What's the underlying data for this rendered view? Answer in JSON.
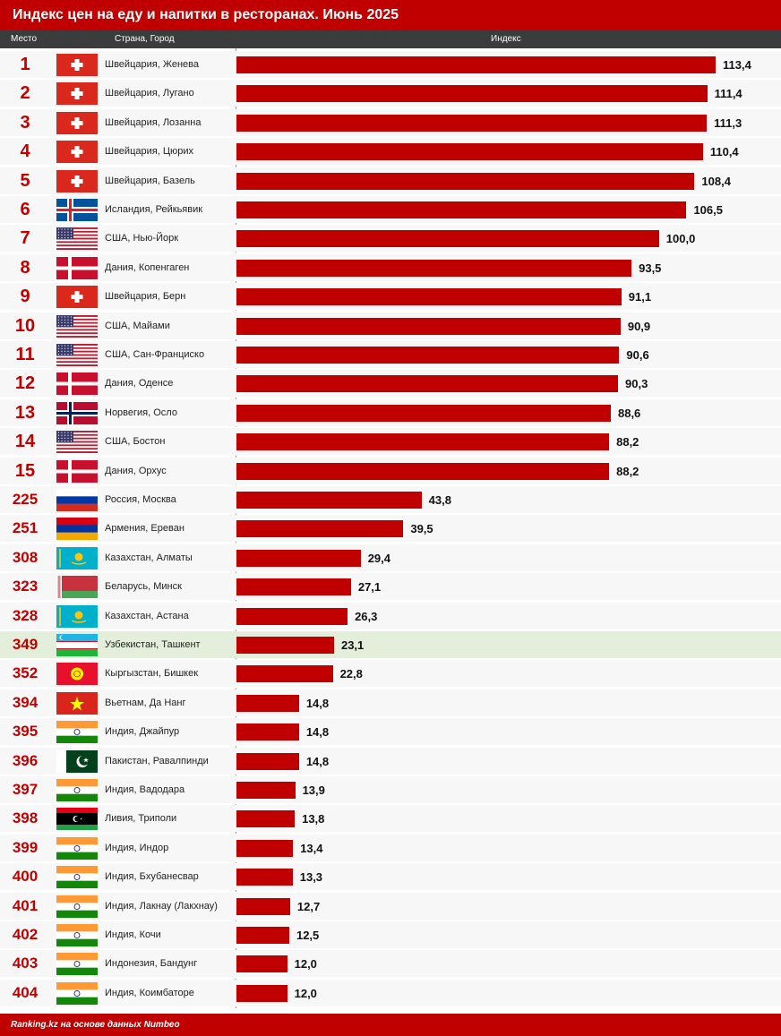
{
  "title": "Индекс цен на еду и напитки в ресторанах. Июнь 2025",
  "columns": {
    "rank": "Место",
    "city": "Страна, Город",
    "index": "Индекс"
  },
  "footer": "Ranking.kz на основе данных Numbeo",
  "colors": {
    "accent": "#c00000",
    "highlight_row": "#e3efdb",
    "header": "#3c3c3c"
  },
  "chart_data": {
    "type": "bar",
    "orientation": "horizontal",
    "title": "Индекс цен на еду и напитки в ресторанах. Июнь 2025",
    "xlim": [
      0,
      120
    ],
    "highlight": "Узбекистан, Ташкент",
    "rows": [
      {
        "rank": "1",
        "city": "Швейцария, Женева",
        "flag": "switzerland-flag",
        "value": 113.4,
        "label": "113,4"
      },
      {
        "rank": "2",
        "city": "Швейцария, Лугано",
        "flag": "switzerland-flag",
        "value": 111.4,
        "label": "111,4"
      },
      {
        "rank": "3",
        "city": "Швейцария, Лозанна",
        "flag": "switzerland-flag",
        "value": 111.3,
        "label": "111,3"
      },
      {
        "rank": "4",
        "city": "Швейцария, Цюрих",
        "flag": "switzerland-flag",
        "value": 110.4,
        "label": "110,4"
      },
      {
        "rank": "5",
        "city": "Швейцария, Базель",
        "flag": "switzerland-flag",
        "value": 108.4,
        "label": "108,4"
      },
      {
        "rank": "6",
        "city": "Исландия, Рейкьявик",
        "flag": "iceland-flag",
        "value": 106.5,
        "label": "106,5"
      },
      {
        "rank": "7",
        "city": "США, Нью-Йорк",
        "flag": "usa-flag",
        "value": 100.0,
        "label": "100,0"
      },
      {
        "rank": "8",
        "city": "Дания, Копенгаген",
        "flag": "denmark-flag",
        "value": 93.5,
        "label": "93,5"
      },
      {
        "rank": "9",
        "city": "Швейцария, Берн",
        "flag": "switzerland-flag",
        "value": 91.1,
        "label": "91,1"
      },
      {
        "rank": "10",
        "city": "США, Майами",
        "flag": "usa-flag",
        "value": 90.9,
        "label": "90,9"
      },
      {
        "rank": "11",
        "city": "США, Сан-Франциско",
        "flag": "usa-flag",
        "value": 90.6,
        "label": "90,6"
      },
      {
        "rank": "12",
        "city": "Дания, Оденсе",
        "flag": "denmark-flag",
        "value": 90.3,
        "label": "90,3"
      },
      {
        "rank": "13",
        "city": "Норвегия, Осло",
        "flag": "norway-flag",
        "value": 88.6,
        "label": "88,6"
      },
      {
        "rank": "14",
        "city": "США, Бостон",
        "flag": "usa-flag",
        "value": 88.2,
        "label": "88,2"
      },
      {
        "rank": "15",
        "city": "Дания, Орхус",
        "flag": "denmark-flag",
        "value": 88.2,
        "label": "88,2"
      },
      {
        "rank": "225",
        "city": "Россия, Москва",
        "flag": "russia-flag",
        "value": 43.8,
        "label": "43,8"
      },
      {
        "rank": "251",
        "city": "Армения, Ереван",
        "flag": "armenia-flag",
        "value": 39.5,
        "label": "39,5"
      },
      {
        "rank": "308",
        "city": "Казахстан, Алматы",
        "flag": "kazakhstan-flag",
        "value": 29.4,
        "label": "29,4"
      },
      {
        "rank": "323",
        "city": "Беларусь, Минск",
        "flag": "belarus-flag",
        "value": 27.1,
        "label": "27,1"
      },
      {
        "rank": "328",
        "city": "Казахстан, Астана",
        "flag": "kazakhstan-flag",
        "value": 26.3,
        "label": "26,3"
      },
      {
        "rank": "349",
        "city": "Узбекистан, Ташкент",
        "flag": "uzbekistan-flag",
        "value": 23.1,
        "label": "23,1"
      },
      {
        "rank": "352",
        "city": "Кыргызстан, Бишкек",
        "flag": "kyrgyzstan-flag",
        "value": 22.8,
        "label": "22,8"
      },
      {
        "rank": "394",
        "city": "Вьетнам, Да Нанг",
        "flag": "vietnam-flag",
        "value": 14.8,
        "label": "14,8"
      },
      {
        "rank": "395",
        "city": "Индия, Джайпур",
        "flag": "india-flag",
        "value": 14.8,
        "label": "14,8"
      },
      {
        "rank": "396",
        "city": "Пакистан, Равалпинди",
        "flag": "pakistan-flag",
        "value": 14.8,
        "label": "14,8"
      },
      {
        "rank": "397",
        "city": "Индия, Вадодара",
        "flag": "india-flag",
        "value": 13.9,
        "label": "13,9"
      },
      {
        "rank": "398",
        "city": "Ливия, Триполи",
        "flag": "libya-flag",
        "value": 13.8,
        "label": "13,8"
      },
      {
        "rank": "399",
        "city": "Индия, Индор",
        "flag": "india-flag",
        "value": 13.4,
        "label": "13,4"
      },
      {
        "rank": "400",
        "city": "Индия, Бхубанесвар",
        "flag": "india-flag",
        "value": 13.3,
        "label": "13,3"
      },
      {
        "rank": "401",
        "city": "Индия, Лакнау (Лакхнау)",
        "flag": "india-flag",
        "value": 12.7,
        "label": "12,7"
      },
      {
        "rank": "402",
        "city": "Индия, Кочи",
        "flag": "india-flag",
        "value": 12.5,
        "label": "12,5"
      },
      {
        "rank": "403",
        "city": "Индонезия, Бандунг",
        "flag": "india-flag",
        "value": 12.0,
        "label": "12,0"
      },
      {
        "rank": "404",
        "city": "Индия, Коимбаторе",
        "flag": "india-flag",
        "value": 12.0,
        "label": "12,0"
      }
    ]
  }
}
